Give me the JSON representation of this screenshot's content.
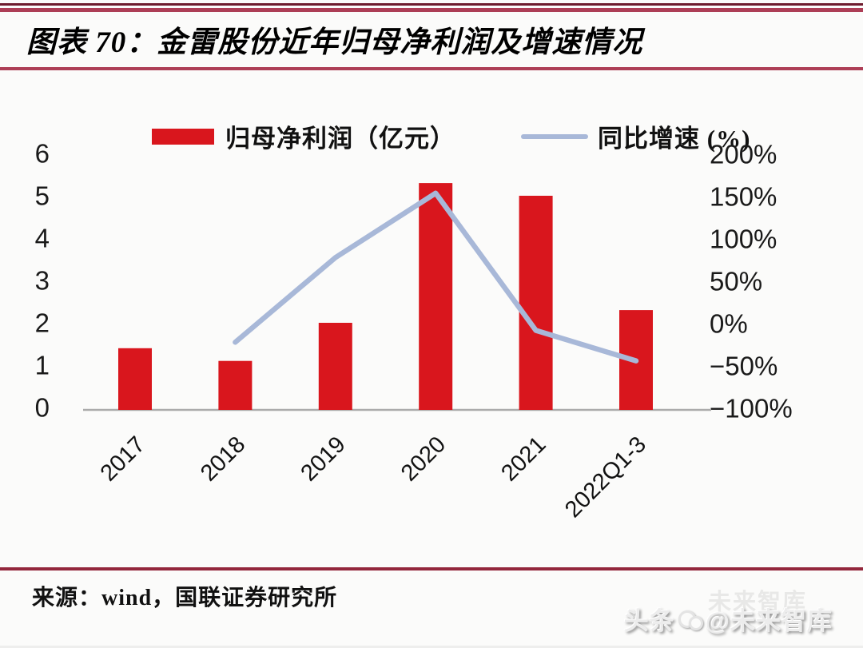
{
  "header": {
    "title": "图表 70：金雷股份近年归母净利润及增速情况"
  },
  "footer": {
    "source": "来源：wind，国联证券研究所",
    "watermark_prefix": "头条",
    "watermark_handle": "@未来智库",
    "watermark_ghost": "未来智库"
  },
  "colors": {
    "bar": "#d9161d",
    "line": "#a8b8d8",
    "baseline": "#ababab",
    "rule_accent": "#ad3e56",
    "rule_dark": "#6e1b2e",
    "rule_bottom": "#93273c"
  },
  "chart_data": {
    "type": "bar",
    "title": "金雷股份近年归母净利润及增速情况",
    "categories": [
      "2017",
      "2018",
      "2019",
      "2020",
      "2021",
      "2022Q1-3"
    ],
    "series": [
      {
        "name": "归母净利润（亿元）",
        "type": "bar",
        "axis": "left",
        "values": [
          1.4,
          1.1,
          2.0,
          5.3,
          5.0,
          2.3
        ]
      },
      {
        "name": "同比增速 (%)",
        "type": "line",
        "axis": "right",
        "values": [
          null,
          -22,
          78,
          154,
          -8,
          -44
        ]
      }
    ],
    "left_axis": {
      "ticks": [
        6,
        5,
        4,
        3,
        2,
        1,
        0
      ],
      "range": [
        0,
        6
      ],
      "label": "亿元"
    },
    "right_axis": {
      "ticks": [
        {
          "label": "200%",
          "value": 200
        },
        {
          "label": "150%",
          "value": 150
        },
        {
          "label": "100%",
          "value": 100
        },
        {
          "label": "50%",
          "value": 50
        },
        {
          "label": "0%",
          "value": 0
        },
        {
          "label": "−50%",
          "value": -50
        },
        {
          "label": "−100%",
          "value": -100
        }
      ],
      "range": [
        -100,
        200
      ],
      "unit": "%"
    },
    "legend_position": "top",
    "grid": false
  }
}
